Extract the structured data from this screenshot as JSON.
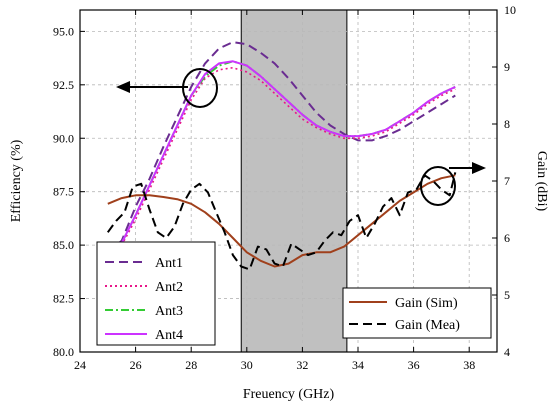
{
  "chart_data": {
    "type": "line",
    "title": "",
    "xlabel": "Freuency (GHz)",
    "ylabel_left": "Efficiency (%)",
    "ylabel_right": "Gain (dBi)",
    "xlim": [
      24,
      39
    ],
    "ylim_left": [
      80,
      96
    ],
    "ylim_right": [
      4,
      10
    ],
    "x_ticks": [
      24,
      26,
      28,
      30,
      32,
      34,
      36,
      38
    ],
    "y_left_ticks": [
      80.0,
      82.5,
      85.0,
      87.5,
      90.0,
      92.5,
      95.0
    ],
    "y_right_ticks": [
      4,
      5,
      6,
      7,
      8,
      9,
      10
    ],
    "grid": true,
    "shaded_band": [
      29.8,
      33.6
    ],
    "efficiency_legend_position": "bottom-left",
    "gain_legend_position": "bottom-right",
    "efficiency_series": [
      {
        "name": "Ant1",
        "color": "#6a2c91",
        "style": "dashed",
        "x": [
          25.0,
          25.5,
          26.0,
          26.5,
          27.0,
          27.5,
          28.0,
          28.5,
          29.0,
          29.5,
          30.0,
          30.5,
          31.0,
          31.5,
          32.0,
          32.5,
          33.0,
          33.5,
          34.0,
          34.5,
          35.0,
          35.5,
          36.0,
          36.5,
          37.0,
          37.5
        ],
        "values": [
          84.7,
          85.2,
          86.8,
          88.1,
          89.6,
          91.0,
          92.4,
          93.5,
          94.2,
          94.5,
          94.4,
          94.0,
          93.5,
          92.8,
          92.0,
          91.2,
          90.6,
          90.2,
          89.9,
          89.9,
          90.1,
          90.4,
          90.8,
          91.2,
          91.6,
          92.0
        ]
      },
      {
        "name": "Ant2",
        "color": "#e8178a",
        "style": "dotted",
        "x": [
          25.0,
          25.5,
          26.0,
          26.5,
          27.0,
          27.5,
          28.0,
          28.5,
          29.0,
          29.5,
          30.0,
          30.5,
          31.0,
          31.5,
          32.0,
          32.5,
          33.0,
          33.5,
          34.0,
          34.5,
          35.0,
          35.5,
          36.0,
          36.5,
          37.0,
          37.5
        ],
        "values": [
          84.7,
          85.0,
          86.2,
          87.6,
          89.0,
          90.4,
          91.8,
          92.8,
          93.2,
          93.3,
          93.1,
          92.7,
          92.1,
          91.5,
          90.9,
          90.5,
          90.2,
          90.0,
          90.0,
          90.1,
          90.3,
          90.7,
          91.1,
          91.6,
          92.0,
          92.3
        ]
      },
      {
        "name": "Ant3",
        "color": "#33cc33",
        "style": "dashdot",
        "x": [
          25.0,
          25.5,
          26.0,
          26.5,
          27.0,
          27.5,
          28.0,
          28.5,
          29.0,
          29.5,
          30.0,
          30.5,
          31.0,
          31.5,
          32.0,
          32.5,
          33.0,
          33.5,
          34.0,
          34.5,
          35.0,
          35.5,
          36.0,
          36.5,
          37.0,
          37.5
        ],
        "values": [
          85.0,
          85.1,
          86.4,
          87.8,
          89.2,
          90.6,
          92.0,
          92.9,
          93.4,
          93.6,
          93.4,
          92.9,
          92.3,
          91.7,
          91.1,
          90.6,
          90.3,
          90.1,
          90.1,
          90.2,
          90.4,
          90.8,
          91.2,
          91.7,
          92.1,
          92.4
        ]
      },
      {
        "name": "Ant4",
        "color": "#cc33ff",
        "style": "solid",
        "x": [
          25.0,
          25.5,
          26.0,
          26.5,
          27.0,
          27.5,
          28.0,
          28.5,
          29.0,
          29.5,
          30.0,
          30.5,
          31.0,
          31.5,
          32.0,
          32.5,
          33.0,
          33.5,
          34.0,
          34.5,
          35.0,
          35.5,
          36.0,
          36.5,
          37.0,
          37.5
        ],
        "values": [
          84.8,
          85.1,
          86.4,
          87.8,
          89.2,
          90.6,
          92.0,
          93.0,
          93.5,
          93.6,
          93.4,
          92.9,
          92.3,
          91.7,
          91.1,
          90.6,
          90.3,
          90.1,
          90.1,
          90.2,
          90.4,
          90.8,
          91.2,
          91.7,
          92.1,
          92.4
        ]
      }
    ],
    "gain_series": [
      {
        "name": "Gain (Sim)",
        "color": "#a0401c",
        "style": "solid",
        "x": [
          25.0,
          25.5,
          26.0,
          26.5,
          27.0,
          27.5,
          28.0,
          28.5,
          29.0,
          29.5,
          30.0,
          30.5,
          31.0,
          31.5,
          32.0,
          32.5,
          33.0,
          33.5,
          34.0,
          34.5,
          35.0,
          35.5,
          36.0,
          36.5,
          37.0,
          37.5
        ],
        "values": [
          6.6,
          6.7,
          6.75,
          6.75,
          6.72,
          6.68,
          6.6,
          6.45,
          6.25,
          6.0,
          5.75,
          5.6,
          5.5,
          5.55,
          5.7,
          5.75,
          5.75,
          5.85,
          6.05,
          6.25,
          6.45,
          6.65,
          6.8,
          6.95,
          7.05,
          7.1
        ]
      },
      {
        "name": "Gain (Mea)",
        "color": "#000000",
        "style": "dashed",
        "x": [
          25.0,
          25.3,
          25.6,
          25.9,
          26.2,
          26.5,
          26.8,
          27.1,
          27.4,
          27.7,
          28.0,
          28.3,
          28.6,
          28.9,
          29.2,
          29.5,
          29.8,
          30.1,
          30.4,
          30.7,
          31.0,
          31.3,
          31.6,
          31.9,
          32.2,
          32.5,
          32.8,
          33.1,
          33.4,
          33.7,
          34.0,
          34.3,
          34.6,
          34.9,
          35.2,
          35.5,
          35.8,
          36.1,
          36.4,
          36.7,
          37.0,
          37.3,
          37.5
        ],
        "values": [
          6.1,
          6.3,
          6.45,
          6.9,
          6.95,
          6.5,
          6.1,
          6.0,
          6.2,
          6.6,
          6.85,
          6.95,
          6.8,
          6.45,
          6.1,
          5.7,
          5.5,
          5.45,
          5.85,
          5.8,
          5.55,
          5.5,
          5.9,
          5.8,
          5.7,
          5.75,
          5.95,
          6.1,
          6.05,
          6.3,
          6.4,
          6.0,
          6.25,
          6.55,
          6.7,
          6.4,
          6.8,
          6.85,
          7.1,
          7.0,
          6.85,
          6.75,
          7.15
        ]
      }
    ]
  }
}
